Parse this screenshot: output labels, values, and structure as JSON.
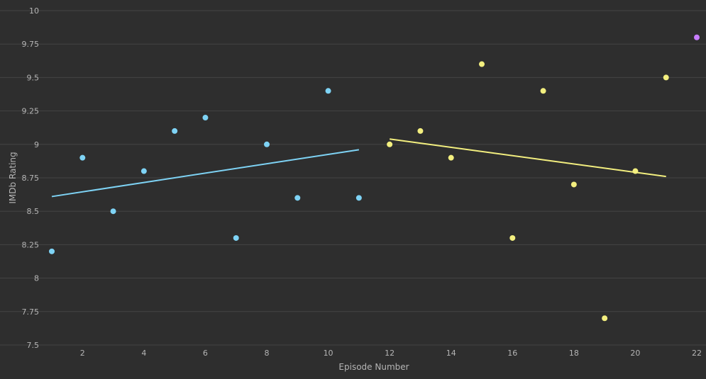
{
  "chart_data": {
    "type": "scatter",
    "title": "",
    "xlabel": "Episode Number",
    "ylabel": "IMDb Rating",
    "xlim": [
      1,
      22
    ],
    "ylim": [
      7.5,
      10
    ],
    "grid": true,
    "legend": "none",
    "colors": {
      "background": "#2e2e2e",
      "grid": "#444444",
      "text": "#b5b5b5"
    },
    "x_ticks": [
      2,
      4,
      6,
      8,
      10,
      12,
      14,
      16,
      18,
      20,
      22
    ],
    "x_tick_labels": [
      "2",
      "4",
      "6",
      "8",
      "10",
      "12",
      "14",
      "16",
      "18",
      "20",
      "22"
    ],
    "y_ticks": [
      7.5,
      7.75,
      8,
      8.25,
      8.5,
      8.75,
      9,
      9.25,
      9.5,
      9.75,
      10
    ],
    "y_tick_labels": [
      "7.5",
      "7.75",
      "8",
      "8.25",
      "8.5",
      "8.75",
      "9",
      "9.25",
      "9.5",
      "9.75",
      "10"
    ],
    "series": [
      {
        "color": "#7ed3f5",
        "points": [
          {
            "x": 1,
            "y": 8.2
          },
          {
            "x": 2,
            "y": 8.9
          },
          {
            "x": 3,
            "y": 8.5
          },
          {
            "x": 4,
            "y": 8.8
          },
          {
            "x": 5,
            "y": 9.1
          },
          {
            "x": 6,
            "y": 9.2
          },
          {
            "x": 7,
            "y": 8.3
          },
          {
            "x": 8,
            "y": 9.0
          },
          {
            "x": 9,
            "y": 8.6
          },
          {
            "x": 10,
            "y": 9.4
          },
          {
            "x": 11,
            "y": 8.6
          }
        ],
        "trend": [
          {
            "x": 1,
            "y": 8.61
          },
          {
            "x": 11,
            "y": 8.96
          }
        ]
      },
      {
        "color": "#f3ef7f",
        "points": [
          {
            "x": 12,
            "y": 9.0
          },
          {
            "x": 13,
            "y": 9.1
          },
          {
            "x": 14,
            "y": 8.9
          },
          {
            "x": 15,
            "y": 9.6
          },
          {
            "x": 16,
            "y": 8.3
          },
          {
            "x": 17,
            "y": 9.4
          },
          {
            "x": 18,
            "y": 8.7
          },
          {
            "x": 19,
            "y": 7.7
          },
          {
            "x": 20,
            "y": 8.8
          },
          {
            "x": 21,
            "y": 9.5
          }
        ],
        "trend": [
          {
            "x": 12,
            "y": 9.04
          },
          {
            "x": 21,
            "y": 8.76
          }
        ]
      },
      {
        "color": "#c77dff",
        "points": [
          {
            "x": 22,
            "y": 9.8
          }
        ]
      }
    ]
  }
}
